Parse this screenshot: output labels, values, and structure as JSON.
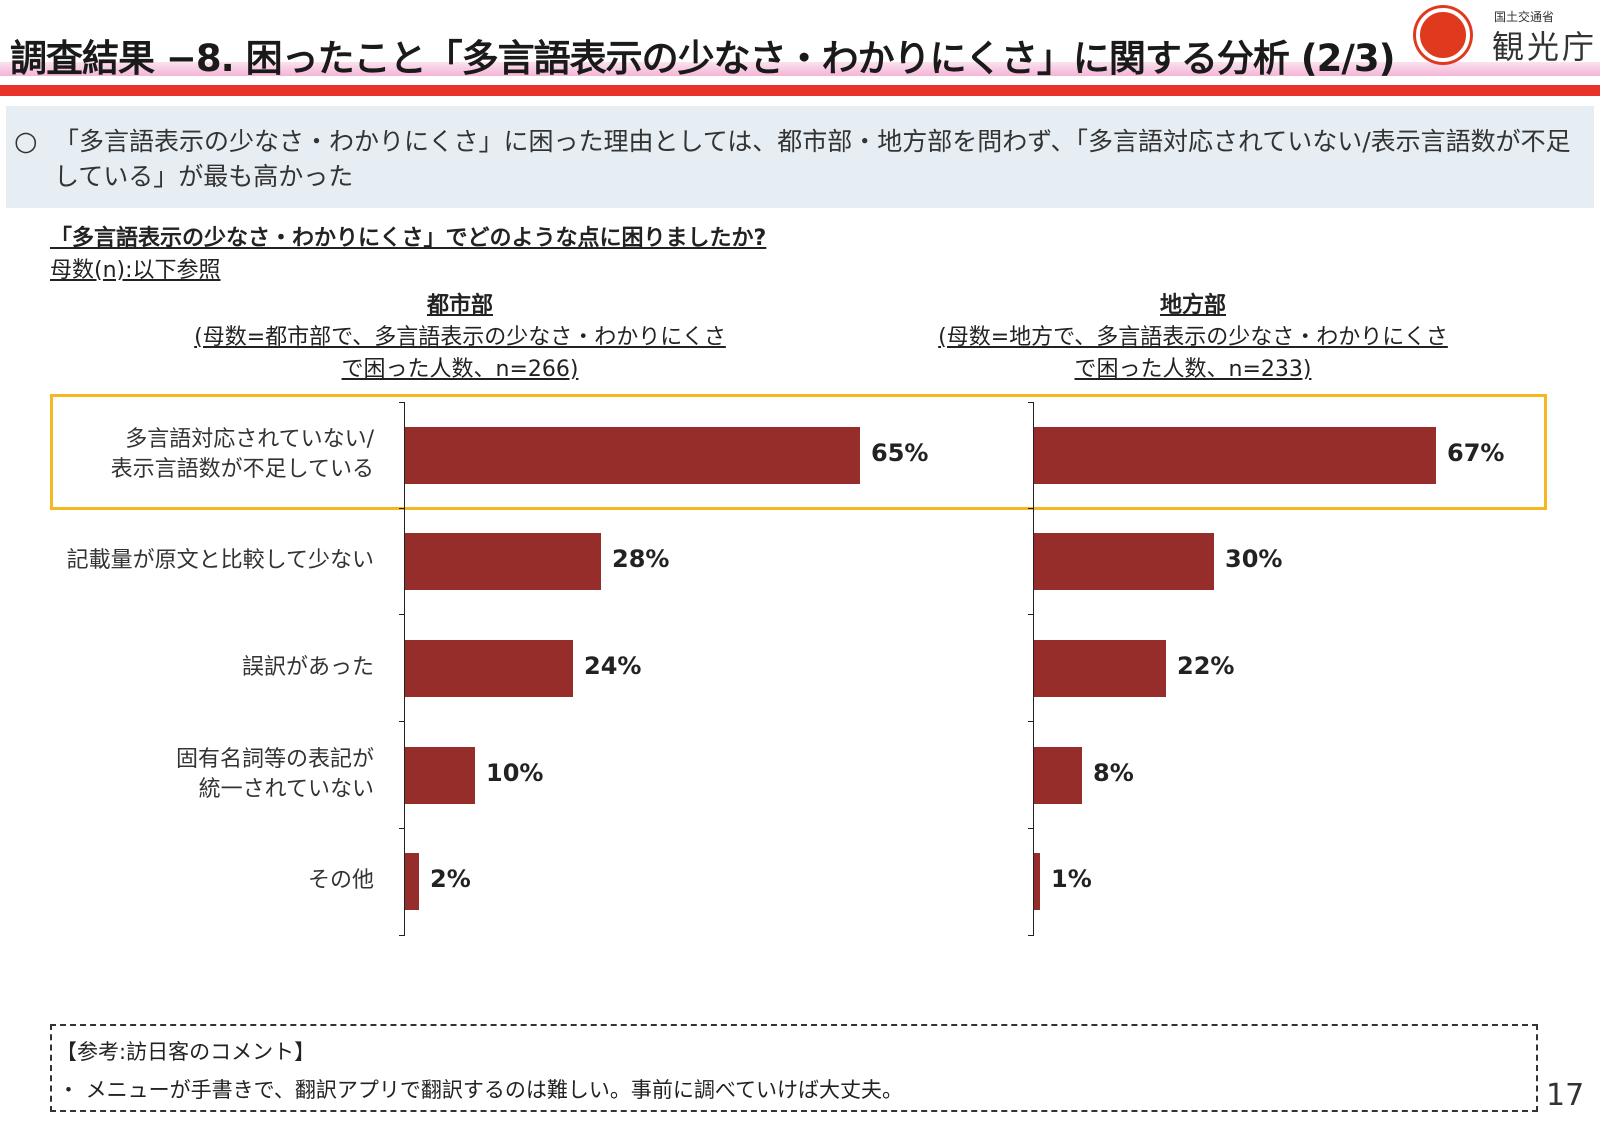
{
  "header": {
    "title": "調査結果 −8. 困ったこと「多言語表示の少なさ・わかりにくさ」に関する分析 (2/3)",
    "logo_small": "国土交通省",
    "logo_big": "観光庁",
    "accent_color": "#e8332a"
  },
  "summary": {
    "mark": "○",
    "text": "「多言語表示の少なさ・わかりにくさ」に困った理由としては、都市部・地方部を問わず、「多言語対応されていない/表示言語数が不足している」が最も高かった"
  },
  "question": {
    "title": "「多言語表示の少なさ・わかりにくさ」でどのような点に困りましたか?",
    "n_note": "母数(n):以下参照"
  },
  "chart_data": [
    {
      "type": "bar",
      "orientation": "horizontal",
      "group_name": "都市部",
      "group_note_1": "(母数=都市部で、多言語表示の少なさ・わかりにくさ",
      "group_note_2": "で困った人数、n=266)",
      "categories": [
        "多言語対応されていない/表示言語数が不足している",
        "記載量が原文と比較して少ない",
        "誤訳があった",
        "固有名詞等の表記が統一されていない",
        "その他"
      ],
      "values": [
        65,
        28,
        24,
        10,
        2
      ],
      "value_labels": [
        "65%",
        "28%",
        "24%",
        "10%",
        "2%"
      ],
      "bar_color": "#962d2a",
      "xlim": [
        0,
        100
      ]
    },
    {
      "type": "bar",
      "orientation": "horizontal",
      "group_name": "地方部",
      "group_note_1": "(母数=地方で、多言語表示の少なさ・わかりにくさ",
      "group_note_2": "で困った人数、n=233)",
      "categories": [
        "多言語対応されていない/表示言語数が不足している",
        "記載量が原文と比較して少ない",
        "誤訳があった",
        "固有名詞等の表記が統一されていない",
        "その他"
      ],
      "values": [
        67,
        30,
        22,
        8,
        1
      ],
      "value_labels": [
        "67%",
        "30%",
        "22%",
        "8%",
        "1%"
      ],
      "bar_color": "#962d2a",
      "xlim": [
        0,
        100
      ]
    }
  ],
  "category_labels": [
    [
      "多言語対応されていない/",
      "表示言語数が不足している"
    ],
    [
      "記載量が原文と比較して少ない"
    ],
    [
      "誤訳があった"
    ],
    [
      "固有名詞等の表記が",
      "統一されていない"
    ],
    [
      "その他"
    ]
  ],
  "highlight_color": "#f5b820",
  "reference": {
    "title": "【参考:訪日客のコメント】",
    "items": [
      "・ メニューが手書きで、翻訳アプリで翻訳するのは難しい。事前に調べていけば大丈夫。"
    ]
  },
  "page_number": "17"
}
